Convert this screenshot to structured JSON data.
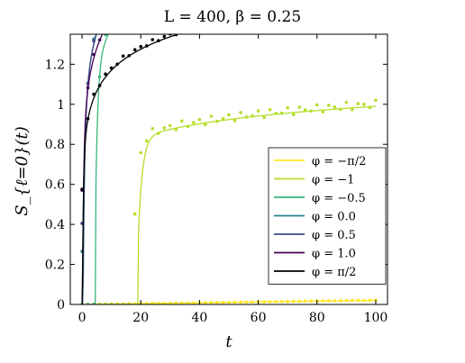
{
  "chart_data": {
    "type": "line",
    "title": "L = 400, β = 0.25",
    "xlabel": "t",
    "ylabel": "S_{ℓ=0}(t)",
    "xlim": [
      -4,
      104
    ],
    "ylim": [
      0,
      1.35
    ],
    "xticks": [
      0,
      20,
      40,
      60,
      80,
      100
    ],
    "yticks": [
      0,
      0.2,
      0.4,
      0.6,
      0.8,
      1,
      1.2
    ],
    "xtick_labels": [
      "0",
      "20",
      "40",
      "60",
      "80",
      "100"
    ],
    "ytick_labels": [
      "0",
      "0.2",
      "0.4",
      "0.6",
      "0.8",
      "1",
      "1.2"
    ],
    "grid": false,
    "legend_position": "lower-right",
    "series": [
      {
        "name": "φ = −π/2",
        "color": "#fde725",
        "line": "linear",
        "A": 0.0002,
        "t0": 0,
        "p": 1,
        "lineVals": [
          0,
          0.016
        ],
        "dots": "linear",
        "dotA": 0.00022,
        "dotOsc": 0
      },
      {
        "name": "φ = −1",
        "color": "#b5de2b",
        "line": "log",
        "A": 0.55,
        "B": 0.22,
        "t0": 19,
        "p": 1.4,
        "dotA": 0.56,
        "dotOsc": 0.02,
        "dotDelay": 17.5
      },
      {
        "name": "φ = −0.5",
        "color": "#35b779",
        "line": "log",
        "A": 0.8,
        "B": 0.58,
        "t0": 4.5,
        "p": 0.75,
        "dotA": 0.82,
        "dotOsc": 0.025
      },
      {
        "name": "φ = 0.0",
        "color": "#26828e",
        "line": "log",
        "A": 0.95,
        "B": 0.59,
        "t0": 0.2,
        "p": 0.5,
        "dotA": 0.96,
        "dotOsc": 0.012
      },
      {
        "name": "φ = 0.5",
        "color": "#3e4989",
        "line": "log",
        "A": 0.95,
        "B": 0.58,
        "t0": 0,
        "p": 0.55,
        "dotA": 0.96,
        "dotOsc": 0.008
      },
      {
        "name": "φ = 1.0",
        "color": "#440154",
        "line": "log",
        "A": 0.93,
        "B": 0.5,
        "t0": 0,
        "p": 0.35,
        "dotA": 0.94,
        "dotOsc": 0.008
      },
      {
        "name": "φ = π/2",
        "color": "#000000",
        "line": "log",
        "A": 0.82,
        "B": 0.35,
        "t0": 0,
        "p": 0.3,
        "dotA": 0.83,
        "dotOsc": 0.01
      }
    ]
  }
}
